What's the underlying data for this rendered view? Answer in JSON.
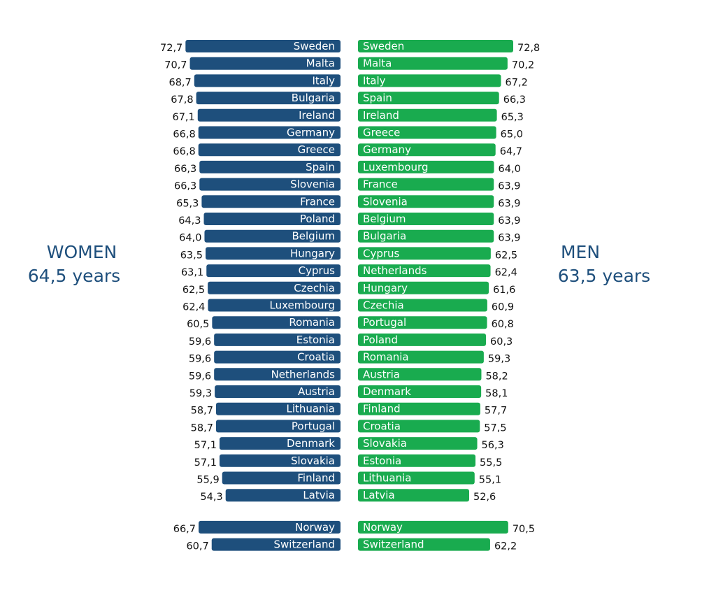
{
  "chart_data": {
    "type": "bar",
    "colors": {
      "women": "#1e4f7c",
      "men": "#19ab4f"
    },
    "women": {
      "title": "WOMEN",
      "subtitle": "64,5 years",
      "groups": [
        [
          {
            "country": "Sweden",
            "value": "72,7"
          },
          {
            "country": "Malta",
            "value": "70,7"
          },
          {
            "country": "Italy",
            "value": "68,7"
          },
          {
            "country": "Bulgaria",
            "value": "67,8"
          },
          {
            "country": "Ireland",
            "value": "67,1"
          },
          {
            "country": "Germany",
            "value": "66,8"
          },
          {
            "country": "Greece",
            "value": "66,8"
          },
          {
            "country": "Spain",
            "value": "66,3"
          },
          {
            "country": "Slovenia",
            "value": "66,3"
          },
          {
            "country": "France",
            "value": "65,3"
          },
          {
            "country": "Poland",
            "value": "64,3"
          },
          {
            "country": "Belgium",
            "value": "64,0"
          },
          {
            "country": "Hungary",
            "value": "63,5"
          },
          {
            "country": "Cyprus",
            "value": "63,1"
          },
          {
            "country": "Czechia",
            "value": "62,5"
          },
          {
            "country": "Luxembourg",
            "value": "62,4"
          },
          {
            "country": "Romania",
            "value": "60,5"
          },
          {
            "country": "Estonia",
            "value": "59,6"
          },
          {
            "country": "Croatia",
            "value": "59,6"
          },
          {
            "country": "Netherlands",
            "value": "59,6"
          },
          {
            "country": "Austria",
            "value": "59,3"
          },
          {
            "country": "Lithuania",
            "value": "58,7"
          },
          {
            "country": "Portugal",
            "value": "58,7"
          },
          {
            "country": "Denmark",
            "value": "57,1"
          },
          {
            "country": "Slovakia",
            "value": "57,1"
          },
          {
            "country": "Finland",
            "value": "55,9"
          },
          {
            "country": "Latvia",
            "value": "54,3"
          }
        ],
        [
          {
            "country": "Norway",
            "value": "66,7"
          },
          {
            "country": "Switzerland",
            "value": "60,7"
          }
        ]
      ]
    },
    "men": {
      "title": "MEN",
      "subtitle": "63,5 years",
      "groups": [
        [
          {
            "country": "Sweden",
            "value": "72,8"
          },
          {
            "country": "Malta",
            "value": "70,2"
          },
          {
            "country": "Italy",
            "value": "67,2"
          },
          {
            "country": "Spain",
            "value": "66,3"
          },
          {
            "country": "Ireland",
            "value": "65,3"
          },
          {
            "country": "Greece",
            "value": "65,0"
          },
          {
            "country": "Germany",
            "value": "64,7"
          },
          {
            "country": "Luxembourg",
            "value": "64,0"
          },
          {
            "country": "France",
            "value": "63,9"
          },
          {
            "country": "Slovenia",
            "value": "63,9"
          },
          {
            "country": "Belgium",
            "value": "63,9"
          },
          {
            "country": "Bulgaria",
            "value": "63,9"
          },
          {
            "country": "Cyprus",
            "value": "62,5"
          },
          {
            "country": "Netherlands",
            "value": "62,4"
          },
          {
            "country": "Hungary",
            "value": "61,6"
          },
          {
            "country": "Czechia",
            "value": "60,9"
          },
          {
            "country": "Portugal",
            "value": "60,8"
          },
          {
            "country": "Poland",
            "value": "60,3"
          },
          {
            "country": "Romania",
            "value": "59,3"
          },
          {
            "country": "Austria",
            "value": "58,2"
          },
          {
            "country": "Denmark",
            "value": "58,1"
          },
          {
            "country": "Finland",
            "value": "57,7"
          },
          {
            "country": "Croatia",
            "value": "57,5"
          },
          {
            "country": "Slovakia",
            "value": "56,3"
          },
          {
            "country": "Estonia",
            "value": "55,5"
          },
          {
            "country": "Lithuania",
            "value": "55,1"
          },
          {
            "country": "Latvia",
            "value": "52,6"
          }
        ],
        [
          {
            "country": "Norway",
            "value": "70,5"
          },
          {
            "country": "Switzerland",
            "value": "62,2"
          }
        ]
      ]
    }
  }
}
